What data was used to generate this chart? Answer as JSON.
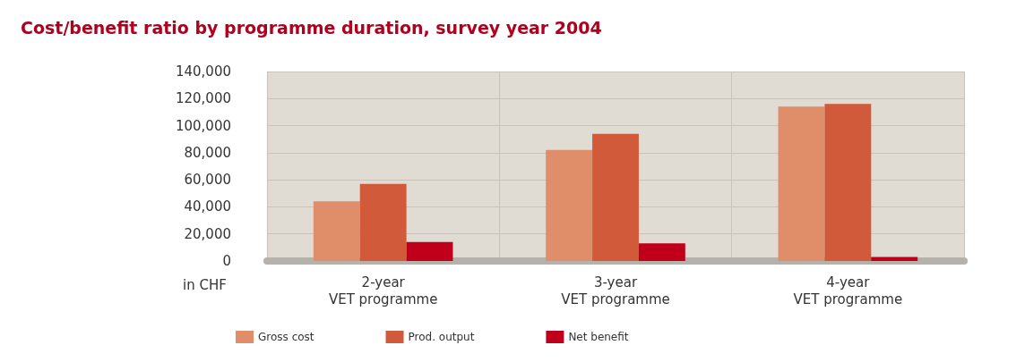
{
  "chart_data": {
    "type": "bar",
    "title": "Cost/benefit ratio by programme duration, survey year 2004",
    "categories": [
      "2-year\nVET programme",
      "3-year\nVET programme",
      "4-year\nVET programme"
    ],
    "series": [
      {
        "name": "Gross cost",
        "color": "#e08d69",
        "values": [
          44000,
          82000,
          114000
        ]
      },
      {
        "name": "Prod. output",
        "color": "#d05a3a",
        "values": [
          57000,
          94000,
          116000
        ]
      },
      {
        "name": "Net benefit",
        "color": "#c0001a",
        "values": [
          14000,
          13000,
          3000
        ]
      }
    ],
    "ylim": [
      0,
      140000
    ],
    "yticks": [
      0,
      {
        "value": 20000,
        "label": "20,000"
      },
      {
        "value": 40000,
        "label": "40,000"
      },
      {
        "value": 60000,
        "label": "60,000"
      },
      {
        "value": 80000,
        "label": "80,000"
      },
      {
        "value": 100000,
        "label": "100,000"
      },
      {
        "value": 120000,
        "label": "120,000"
      },
      {
        "value": 140000,
        "label": "140,000"
      }
    ],
    "grid": true,
    "legend": "bottom",
    "annotations": [
      "in CHF"
    ]
  }
}
